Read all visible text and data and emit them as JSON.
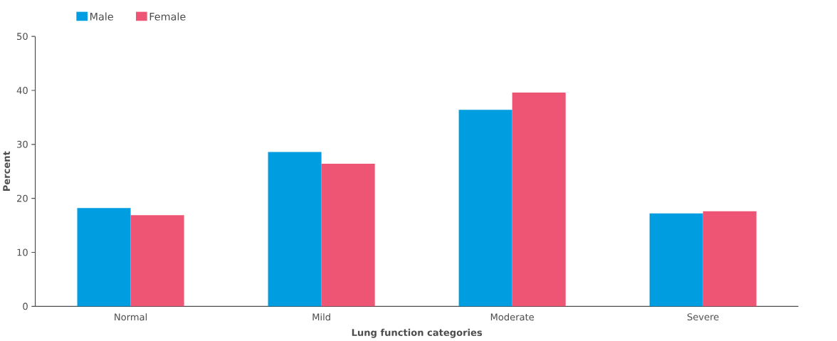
{
  "chart_data": {
    "type": "bar",
    "xlabel": "Lung function categories",
    "ylabel": "Percent",
    "categories": [
      "Normal",
      "Mild",
      "Moderate",
      "Severe"
    ],
    "series": [
      {
        "name": "Male",
        "color": "#009ee0",
        "values": [
          18.2,
          28.6,
          36.4,
          17.2
        ]
      },
      {
        "name": "Female",
        "color": "#ee5574",
        "values": [
          16.9,
          26.4,
          39.6,
          17.6
        ]
      }
    ],
    "ylim": [
      0,
      50
    ],
    "yticks": [
      0,
      10,
      20,
      30,
      40,
      50
    ],
    "grid": false,
    "legend": "top left"
  }
}
